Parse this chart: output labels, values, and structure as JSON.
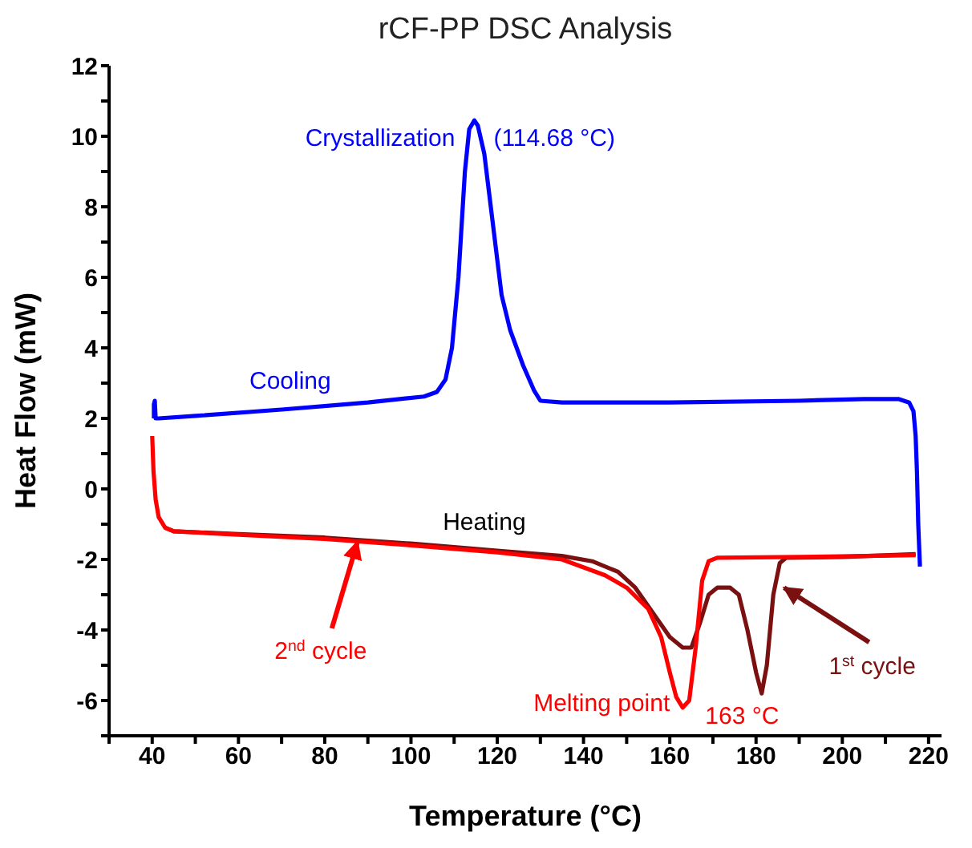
{
  "chart_data": {
    "type": "line",
    "title": "rCF-PP DSC Analysis",
    "xlabel": "Temperature (°C)",
    "ylabel": "Heat Flow (mW)",
    "xlim": [
      30,
      223
    ],
    "xticks": [
      {
        "value": 30,
        "label": null
      },
      40,
      {
        "value": 50,
        "label": null
      },
      60,
      {
        "value": 70,
        "label": null
      },
      80,
      {
        "value": 90,
        "label": null
      },
      100,
      {
        "value": 110,
        "label": null
      },
      120,
      {
        "value": 130,
        "label": null
      },
      140,
      {
        "value": 150,
        "label": null
      },
      160,
      {
        "value": 170,
        "label": null
      },
      180,
      {
        "value": 190,
        "label": null
      },
      200,
      {
        "value": 210,
        "label": null
      },
      220
    ],
    "ylim": [
      -7,
      12
    ],
    "yticks": [
      {
        "value": -7,
        "label": null
      },
      -6,
      {
        "value": -5,
        "label": null
      },
      -4,
      {
        "value": -3,
        "label": null
      },
      -2,
      {
        "value": -1,
        "label": null
      },
      0,
      {
        "value": 1,
        "label": null
      },
      2,
      {
        "value": 3,
        "label": null
      },
      4,
      {
        "value": 5,
        "label": null
      },
      6,
      {
        "value": 7,
        "label": null
      },
      8,
      {
        "value": 9,
        "label": null
      },
      10,
      {
        "value": 11,
        "label": null
      },
      12
    ],
    "marker": "none",
    "line_style": "solid",
    "series": [
      {
        "color": "#0000ff",
        "x": [
          218,
          217.6,
          217.3,
          217,
          216.5,
          215.5,
          213,
          205,
          190,
          160,
          135,
          130,
          128.5,
          126,
          123,
          121,
          119,
          117,
          115.5,
          114.68,
          113.5,
          112.5,
          111,
          109.5,
          108,
          106,
          103,
          90,
          70,
          50,
          41.5,
          40.8,
          40.6,
          40.4,
          40.4
        ],
        "values": [
          -2.2,
          -1,
          0.5,
          1.5,
          2.2,
          2.45,
          2.55,
          2.55,
          2.5,
          2.45,
          2.45,
          2.5,
          2.8,
          3.5,
          4.5,
          5.5,
          7.5,
          9.5,
          10.3,
          10.45,
          10.2,
          9,
          6,
          4,
          3.1,
          2.75,
          2.62,
          2.45,
          2.25,
          2.07,
          2,
          2,
          2.5,
          2.4,
          2
        ]
      },
      {
        "color": "#7a1010",
        "x": [
          43,
          45,
          60,
          80,
          100,
          120,
          135,
          142,
          148,
          152,
          156,
          160,
          163,
          165,
          167,
          169,
          171,
          174,
          176,
          178,
          180,
          181.3,
          182.5,
          184,
          185.5,
          187,
          200,
          217
        ],
        "values": [
          -1.1,
          -1.2,
          -1.28,
          -1.38,
          -1.55,
          -1.75,
          -1.9,
          -2.05,
          -2.35,
          -2.8,
          -3.5,
          -4.2,
          -4.5,
          -4.5,
          -3.8,
          -3,
          -2.8,
          -2.8,
          -3,
          -4,
          -5.2,
          -5.8,
          -5,
          -3,
          -2.1,
          -1.95,
          -1.93,
          -1.85
        ]
      },
      {
        "color": "#ff0000",
        "x": [
          40,
          40.3,
          40.8,
          41.5,
          43,
          45,
          60,
          80,
          100,
          120,
          135,
          145,
          150,
          155,
          158,
          160,
          161.5,
          163,
          164.5,
          166,
          167.5,
          169,
          171,
          190,
          217
        ],
        "values": [
          1.5,
          0.5,
          -0.3,
          -0.8,
          -1.1,
          -1.2,
          -1.3,
          -1.42,
          -1.6,
          -1.8,
          -2,
          -2.45,
          -2.8,
          -3.4,
          -4.2,
          -5.2,
          -5.9,
          -6.2,
          -6,
          -4.5,
          -2.6,
          -2.05,
          -1.95,
          -1.93,
          -1.88
        ]
      }
    ],
    "annotations": [
      {
        "text": "Crystallization",
        "x": 114.68,
        "y": 10.45
      },
      {
        "text": "(114.68 °C)",
        "x": 114.68,
        "y": 10.45
      },
      {
        "text": "Cooling",
        "x": 72,
        "y": 2.25
      },
      {
        "text": "Heating",
        "x": 117,
        "y": -1.75
      },
      {
        "text": "2$^{nd}$ cycle",
        "x": 87.6,
        "y": -1.5
      },
      {
        "text": "Melting point",
        "x": 163,
        "y": -6.2
      },
      {
        "text": "163 °C",
        "x": 163,
        "y": -6.2
      },
      {
        "text": "1$^{st}$ cycle",
        "x": 186.5,
        "y": -2.8
      }
    ]
  }
}
